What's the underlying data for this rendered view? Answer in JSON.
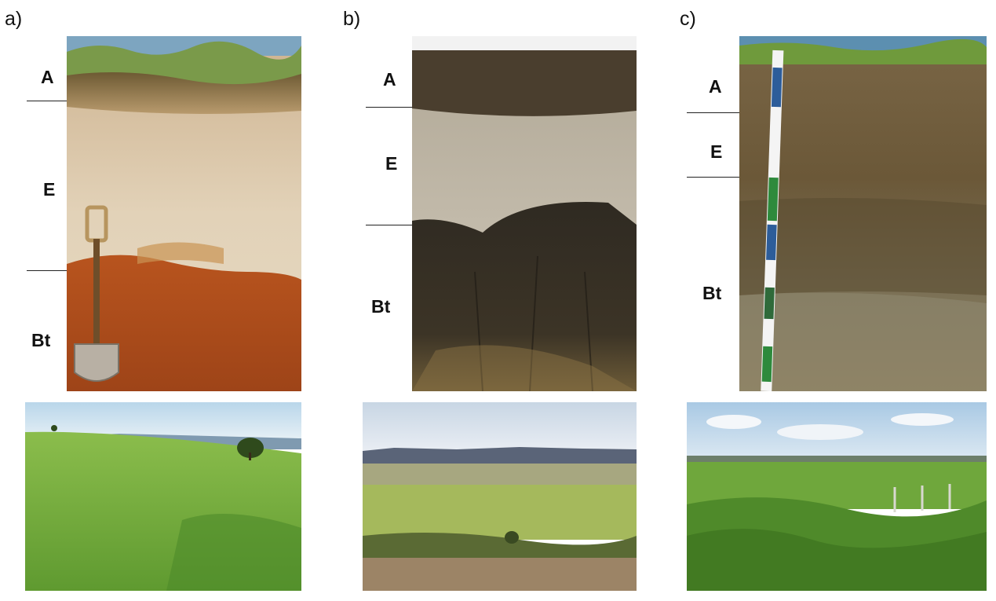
{
  "panels": [
    {
      "label": "a)",
      "horizons": [
        "A",
        "E",
        "Bt"
      ]
    },
    {
      "label": "b)",
      "horizons": [
        "A",
        "E",
        "Bt"
      ]
    },
    {
      "label": "c)",
      "horizons": [
        "A",
        "E",
        "Bt"
      ]
    }
  ]
}
